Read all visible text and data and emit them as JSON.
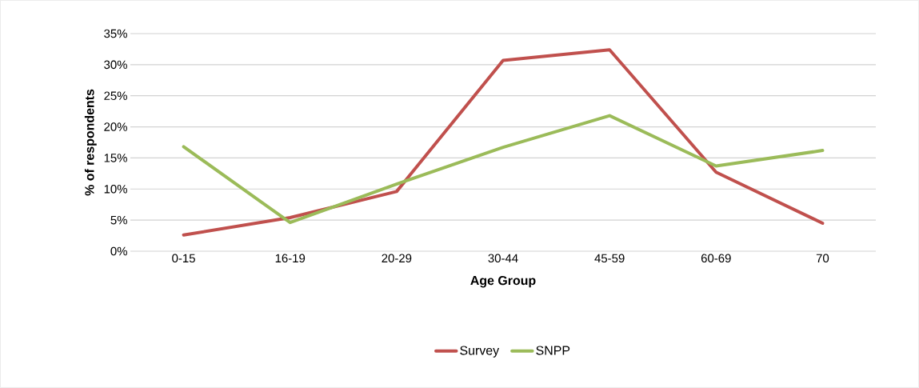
{
  "chart_data": {
    "type": "line",
    "xlabel": "Age Group",
    "ylabel": "% of respondents",
    "categories": [
      "0-15",
      "16-19",
      "20-29",
      "30-44",
      "45-59",
      "60-69",
      "70"
    ],
    "series": [
      {
        "name": "Survey",
        "color": "#c0504d",
        "values": [
          2.6,
          5.4,
          9.6,
          30.7,
          32.4,
          12.7,
          4.5
        ]
      },
      {
        "name": "SNPP",
        "color": "#9bbb59",
        "values": [
          16.8,
          4.6,
          10.8,
          16.7,
          21.8,
          13.7,
          16.2
        ]
      }
    ],
    "ylim": [
      0,
      35
    ],
    "yticks": [
      {
        "value": 0,
        "label": "0%"
      },
      {
        "value": 5,
        "label": "5%"
      },
      {
        "value": 10,
        "label": "10%"
      },
      {
        "value": 15,
        "label": "15%"
      },
      {
        "value": 20,
        "label": "20%"
      },
      {
        "value": 25,
        "label": "25%"
      },
      {
        "value": 30,
        "label": "30%"
      },
      {
        "value": 35,
        "label": "35%"
      }
    ],
    "grid": "y",
    "legend": "bottom",
    "marker": "none",
    "line_style": "solid"
  }
}
